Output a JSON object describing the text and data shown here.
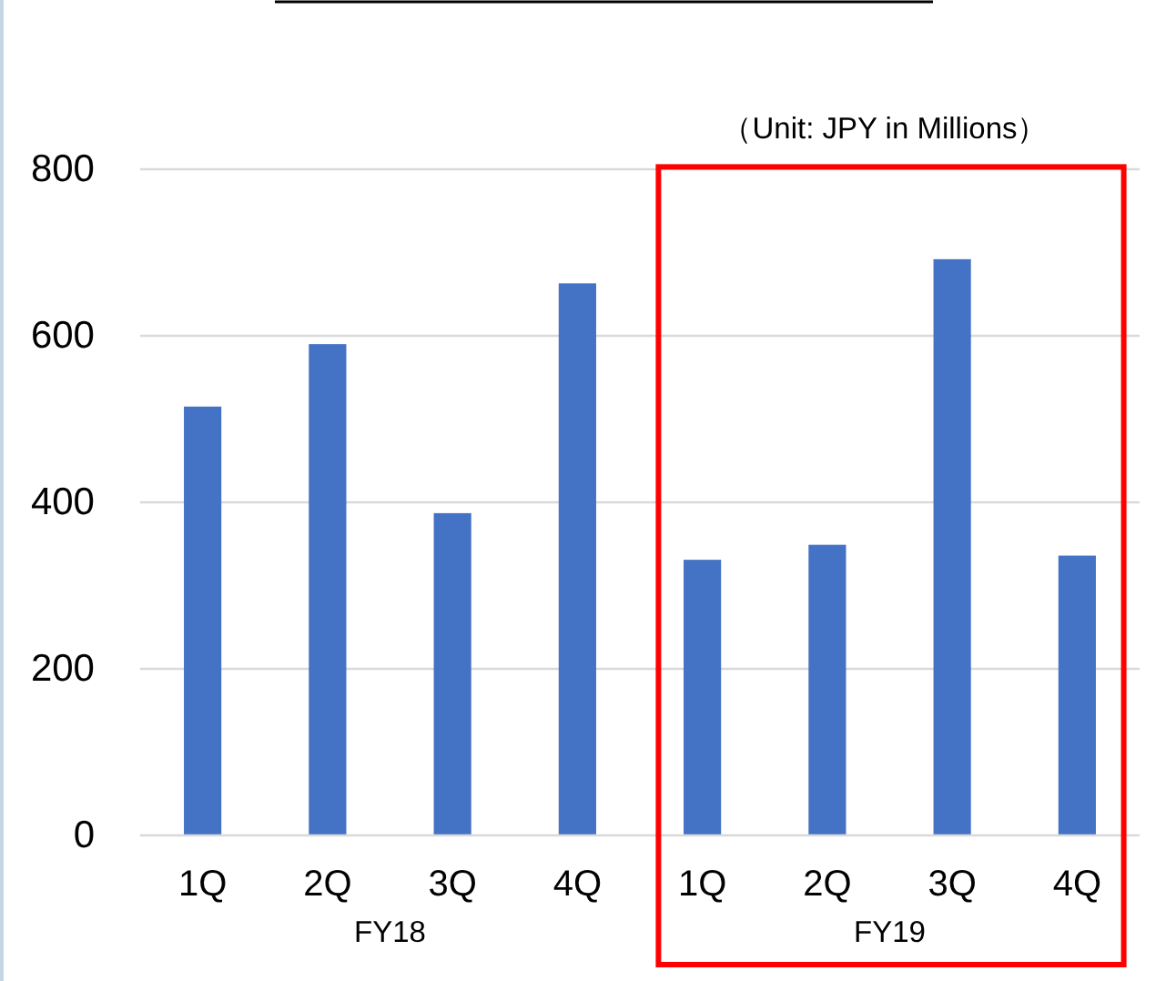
{
  "chart_data": {
    "type": "bar",
    "subtitle": "（Unit: JPY in Millions）",
    "annotations": [
      "FY18",
      "FY19"
    ],
    "categories": [
      "1Q",
      "2Q",
      "3Q",
      "4Q",
      "1Q",
      "2Q",
      "3Q",
      "4Q"
    ],
    "values": [
      515,
      590,
      387,
      663,
      331,
      349,
      692,
      336
    ],
    "color": "#4472c4",
    "ylim": [
      0,
      800
    ],
    "yticks": [
      0,
      200,
      400,
      600,
      800
    ],
    "grid": "y"
  }
}
